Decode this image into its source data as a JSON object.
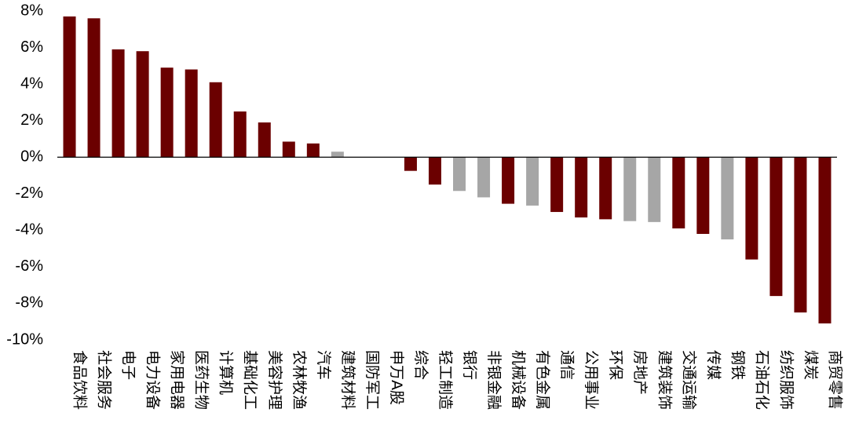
{
  "chart_data": {
    "type": "bar",
    "title": "",
    "xlabel": "",
    "ylabel": "",
    "ylim": [
      -10,
      8
    ],
    "yticks": [
      8,
      6,
      4,
      2,
      0,
      -2,
      -4,
      -6,
      -8,
      -10
    ],
    "ytick_labels": [
      "8%",
      "6%",
      "4%",
      "2%",
      "0%",
      "-2%",
      "-4%",
      "-6%",
      "-8%",
      "-10%"
    ],
    "grid": false,
    "legend": "none",
    "colors": {
      "primary": "#6B0000",
      "secondary": "#A6A6A6"
    },
    "categories": [
      "食品饮料",
      "社会服务",
      "电子",
      "电力设备",
      "家用电器",
      "医药生物",
      "计算机",
      "基础化工",
      "美容护理",
      "农林牧渔",
      "汽车",
      "建筑材料",
      "国防军工",
      "申万A股",
      "综合",
      "轻工制造",
      "银行",
      "非银金融",
      "机械设备",
      "有色金属",
      "通信",
      "公用事业",
      "环保",
      "房地产",
      "建筑装饰",
      "交通运输",
      "传媒",
      "钢铁",
      "石油石化",
      "纺织服饰",
      "煤炭",
      "商贸零售"
    ],
    "values": [
      7.7,
      7.6,
      5.9,
      5.8,
      4.9,
      4.8,
      4.1,
      2.5,
      1.9,
      0.85,
      0.75,
      0.3,
      0.0,
      0.0,
      -0.75,
      -1.5,
      -1.85,
      -2.2,
      -2.55,
      -2.65,
      -3.0,
      -3.3,
      -3.4,
      -3.5,
      -3.55,
      -3.9,
      -4.2,
      -4.5,
      -5.6,
      -7.6,
      -8.5,
      -9.1
    ],
    "bar_colors": [
      "primary",
      "primary",
      "primary",
      "primary",
      "primary",
      "primary",
      "primary",
      "primary",
      "primary",
      "primary",
      "primary",
      "secondary",
      "primary",
      "primary",
      "primary",
      "primary",
      "secondary",
      "secondary",
      "primary",
      "secondary",
      "primary",
      "primary",
      "primary",
      "secondary",
      "secondary",
      "primary",
      "primary",
      "secondary",
      "primary",
      "primary",
      "primary",
      "primary"
    ]
  }
}
